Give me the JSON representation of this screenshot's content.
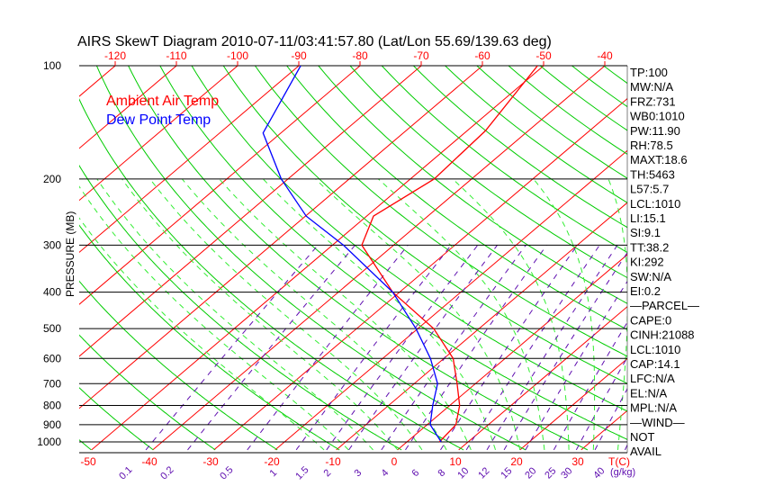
{
  "chart_data": {
    "type": "line",
    "title": "AIRS SkewT Diagram 2010-07-11/03:41:57.80 (Lat/Lon 55.69/139.63 deg)",
    "ylabel": "PRESSURE (MB)",
    "xlabel": "T(C)",
    "mixing_ratio_label": "(g/kg)",
    "yscale": "log",
    "ylim": [
      1050,
      100
    ],
    "pressure_ticks": [
      100,
      200,
      300,
      400,
      500,
      600,
      700,
      800,
      900,
      1000
    ],
    "top_temp_ticks": [
      -120,
      -110,
      -100,
      -90,
      -80,
      -70,
      -60,
      -50,
      -40
    ],
    "bottom_temp_ticks": [
      -50,
      -40,
      -30,
      -20,
      -10,
      0,
      10,
      20,
      30
    ],
    "mixing_ratio_ticks": [
      "0.1",
      "0.2",
      "0.5",
      "1",
      "1.5",
      "2",
      "3",
      "4",
      "6",
      "8",
      "10",
      "12",
      "15",
      "20",
      "25",
      "30",
      "40"
    ],
    "legend": [
      "Ambient Air Temp",
      "Dew Point Temp"
    ],
    "legend_placement": "top-left",
    "series": [
      {
        "name": "Ambient Air Temp",
        "color": "#ff0000",
        "pressure": [
          100,
          149,
          200,
          251,
          300,
          400,
          500,
          600,
          700,
          800,
          900,
          1000
        ],
        "temperature": [
          -51.0,
          -47.0,
          -46.1,
          -48.9,
          -45.2,
          -31.1,
          -17.4,
          -8.5,
          -3.0,
          1.6,
          4.7,
          5.3
        ]
      },
      {
        "name": "Dew Point Temp",
        "color": "#0000ff",
        "pressure": [
          100,
          151,
          200,
          251,
          300,
          400,
          500,
          600,
          700,
          800,
          900,
          1000
        ],
        "temperature": [
          -89.7,
          -82.9,
          -71.1,
          -59.9,
          -48.2,
          -31.1,
          -20.3,
          -12.2,
          -6.2,
          -2.8,
          0.5,
          5.6
        ]
      }
    ],
    "stats": [
      "TP:100",
      "MW:N/A",
      "FRZ:731",
      "WB0:1010",
      "PW:11.90",
      "RH:78.5",
      "MAXT:18.6",
      "TH:5463",
      "L57:5.7",
      "LCL:1010",
      "LI:15.1",
      "SI:9.1",
      "TT:38.2",
      "KI:292",
      "SW:N/A",
      "EI:0.2",
      "—PARCEL—",
      "CAPE:0",
      "CINH:21088",
      "LCL:1010",
      "CAP:14.1",
      "LFC:N/A",
      "EL:N/A",
      "MPL:N/A",
      "—WIND—",
      "NOT",
      "AVAIL"
    ]
  }
}
